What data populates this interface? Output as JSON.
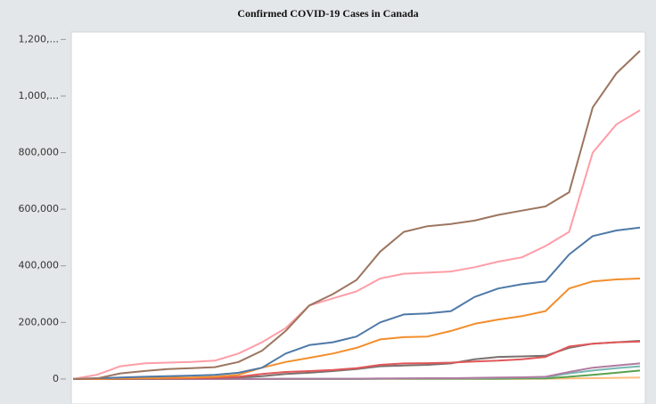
{
  "chart_data": {
    "type": "line",
    "title": "Confirmed  COVID-19  Cases  in  Canada",
    "categories": [
      null,
      null,
      null,
      null,
      null,
      null,
      null,
      null,
      null,
      null,
      null,
      null,
      null,
      null,
      null,
      null,
      null,
      null,
      null,
      null,
      null,
      null,
      null,
      null,
      null
    ],
    "ylim": [
      -60000,
      1220000
    ],
    "yticks": [
      0,
      {
        "value": 200000,
        "label": "200,000"
      },
      {
        "value": 400000,
        "label": "400,000"
      },
      {
        "value": 600000,
        "label": "600,000"
      },
      {
        "value": 800000,
        "label": "800,000"
      },
      {
        "value": 1000000,
        "label": "1,000,..."
      },
      {
        "value": 1200000,
        "label": "1,200,..."
      }
    ],
    "grid": false,
    "series": [
      {
        "color": "#9c755f",
        "values": [
          0,
          2000,
          20000,
          28000,
          35000,
          38000,
          42000,
          60000,
          100000,
          170000,
          260000,
          300000,
          350000,
          450000,
          520000,
          540000,
          548000,
          560000,
          580000,
          595000,
          610000,
          660000,
          960000,
          1080000,
          1160000
        ]
      },
      {
        "color": "#ff9da7",
        "values": [
          0,
          15000,
          45000,
          55000,
          58000,
          60000,
          65000,
          90000,
          130000,
          180000,
          260000,
          285000,
          310000,
          355000,
          372000,
          376000,
          380000,
          395000,
          415000,
          430000,
          470000,
          520000,
          800000,
          900000,
          950000
        ]
      },
      {
        "color": "#4e79a7",
        "values": [
          0,
          3000,
          5000,
          8000,
          10000,
          12000,
          15000,
          22000,
          40000,
          90000,
          120000,
          130000,
          150000,
          200000,
          228000,
          232000,
          240000,
          290000,
          320000,
          335000,
          345000,
          440000,
          505000,
          525000,
          535000
        ]
      },
      {
        "color": "#f28e2b",
        "values": [
          0,
          0,
          2000,
          3000,
          4000,
          5000,
          8000,
          15000,
          40000,
          60000,
          75000,
          90000,
          110000,
          140000,
          148000,
          150000,
          170000,
          195000,
          210000,
          222000,
          240000,
          320000,
          345000,
          352000,
          355000
        ]
      },
      {
        "color": "#e15759",
        "values": [
          0,
          0,
          1000,
          2000,
          2000,
          3000,
          4000,
          8000,
          18000,
          25000,
          28000,
          32000,
          38000,
          50000,
          55000,
          56000,
          58000,
          62000,
          65000,
          70000,
          78000,
          115000,
          125000,
          130000,
          132000
        ]
      },
      {
        "color": "#79706e",
        "values": [
          0,
          0,
          0,
          1000,
          1000,
          2000,
          3000,
          5000,
          10000,
          18000,
          22000,
          28000,
          35000,
          45000,
          48000,
          50000,
          55000,
          70000,
          78000,
          80000,
          82000,
          110000,
          125000,
          130000,
          135000
        ]
      },
      {
        "color": "#b07aa1",
        "values": [
          0,
          0,
          0,
          0,
          0,
          0,
          0,
          0,
          0,
          1000,
          1000,
          1000,
          1000,
          2000,
          2000,
          3000,
          3000,
          4000,
          5000,
          6000,
          8000,
          25000,
          40000,
          48000,
          55000
        ]
      },
      {
        "color": "#76b7b2",
        "values": [
          0,
          0,
          0,
          0,
          0,
          0,
          0,
          0,
          0,
          1000,
          1000,
          1000,
          1000,
          1000,
          2000,
          2000,
          2000,
          3000,
          4000,
          5000,
          6000,
          20000,
          30000,
          38000,
          45000
        ]
      },
      {
        "color": "#59a14f",
        "values": [
          0,
          0,
          0,
          0,
          0,
          0,
          0,
          0,
          0,
          0,
          0,
          0,
          0,
          1000,
          1000,
          1000,
          1000,
          1000,
          1000,
          2000,
          2000,
          8000,
          15000,
          22000,
          30000
        ]
      },
      {
        "color": "#ffbe7d",
        "values": [
          0,
          0,
          0,
          0,
          0,
          0,
          0,
          0,
          0,
          0,
          0,
          0,
          0,
          0,
          0,
          0,
          0,
          0,
          0,
          0,
          1000,
          2000,
          3000,
          4000,
          5000
        ]
      }
    ]
  }
}
